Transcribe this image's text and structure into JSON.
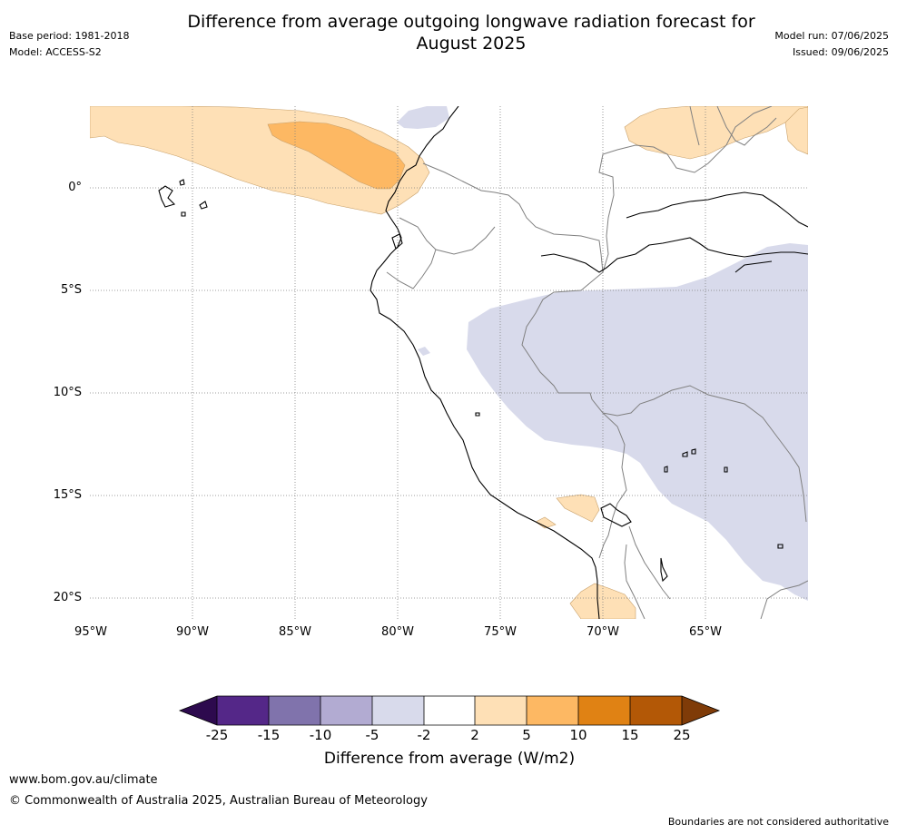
{
  "header": {
    "title_line1": "Difference from average outgoing longwave radiation forecast for",
    "title_line2": "August 2025",
    "base_period": "Base period: 1981-2018",
    "model": "Model: ACCESS-S2",
    "model_run": "Model run: 07/06/2025",
    "issued": "Issued: 09/06/2025"
  },
  "map": {
    "lat_labels": [
      "0°",
      "5°S",
      "10°S",
      "15°S",
      "20°S"
    ],
    "lon_labels": [
      "95°W",
      "90°W",
      "85°W",
      "80°W",
      "75°W",
      "70°W",
      "65°W"
    ],
    "colors": {
      "neg25": "#2d0a4e",
      "neg15_25": "#542788",
      "neg10_15": "#8073ac",
      "neg5_10": "#b2abd2",
      "neg2_5": "#d8daeb",
      "neutral": "#ffffff",
      "pos2_5": "#fee0b6",
      "pos5_10": "#fdb863",
      "pos10_15": "#e08214",
      "pos15_25": "#b35806",
      "pos25": "#7f3b08",
      "coast": "#000000",
      "border": "#808080",
      "grid": "#808080"
    }
  },
  "colorbar": {
    "ticks": [
      "-25",
      "-15",
      "-10",
      "-5",
      "-2",
      "2",
      "5",
      "10",
      "15",
      "25"
    ],
    "label": "Difference from average (W/m2)"
  },
  "footer": {
    "website": "www.bom.gov.au/climate",
    "copyright": "© Commonwealth of Australia 2025, Australian Bureau of Meteorology",
    "disclaimer": "Boundaries are not considered authoritative"
  }
}
